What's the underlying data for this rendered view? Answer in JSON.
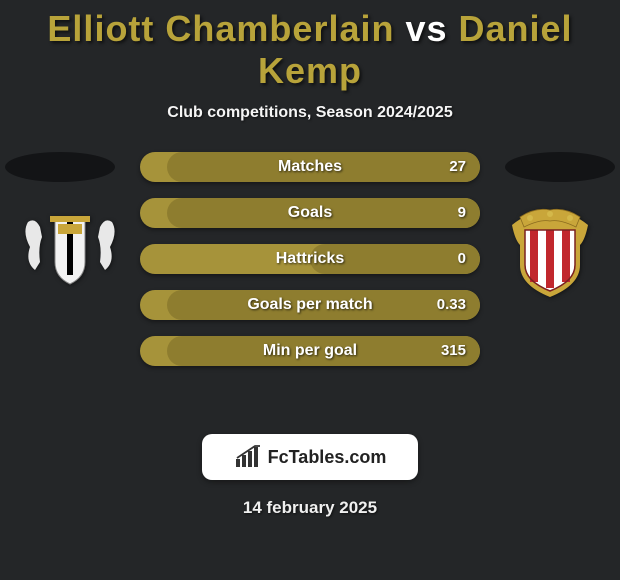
{
  "title": {
    "player1": "Elliott Chamberlain",
    "vs": " vs ",
    "player2": "Daniel Kemp",
    "fontsize": 36,
    "color_player": "#b8a33a",
    "color_vs": "#ffffff"
  },
  "subtitle": "Club competitions, Season 2024/2025",
  "background_color": "#242628",
  "bars": {
    "track_color": "#a6933a",
    "fill_color": "#8e7d2f",
    "height": 30,
    "radius": 15,
    "gap": 16,
    "items": [
      {
        "label": "Matches",
        "value": "27",
        "fill_pct": 92
      },
      {
        "label": "Goals",
        "value": "9",
        "fill_pct": 92
      },
      {
        "label": "Hattricks",
        "value": "0",
        "fill_pct": 50
      },
      {
        "label": "Goals per match",
        "value": "0.33",
        "fill_pct": 92
      },
      {
        "label": "Min per goal",
        "value": "315",
        "fill_pct": 92
      }
    ]
  },
  "brand": "FcTables.com",
  "date": "14 february 2025",
  "crests": {
    "left": {
      "desc": "club-crest-left",
      "shield_fill": "#f2f2f2",
      "accent": "#c9a63a",
      "stripe": "#000000"
    },
    "right": {
      "desc": "club-crest-right",
      "shield_fill": "#ffffff",
      "stripe1": "#c1272d",
      "stripe2": "#ffffff",
      "accent": "#c9a63a"
    }
  }
}
